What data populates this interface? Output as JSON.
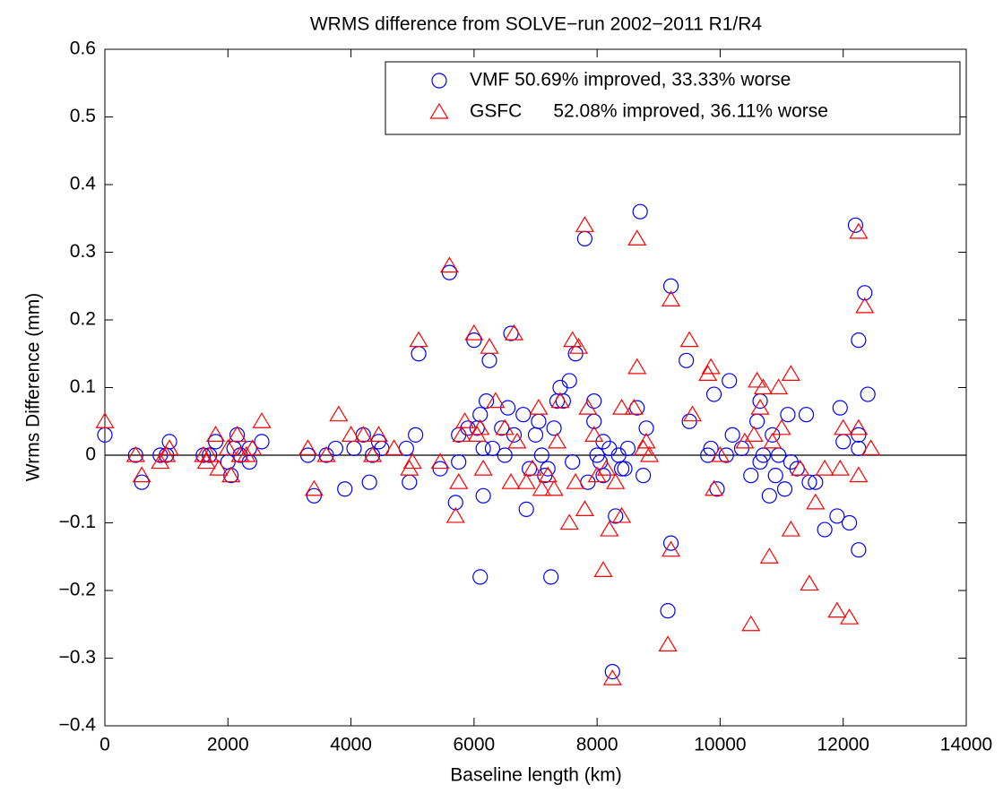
{
  "chart_data": {
    "type": "scatter",
    "title": "WRMS difference from SOLVE−run 2002−2011 R1/R4",
    "xlabel": "Baseline length (km)",
    "ylabel": "Wrms Difference (mm)",
    "xlim": [
      0,
      14000
    ],
    "ylim": [
      -0.4,
      0.6
    ],
    "xticks": [
      0,
      2000,
      4000,
      6000,
      8000,
      10000,
      12000,
      14000
    ],
    "yticks": [
      {
        "value": -0.4,
        "label": "−0.4"
      },
      {
        "value": -0.3,
        "label": "−0.3"
      },
      {
        "value": -0.2,
        "label": "−0.2"
      },
      {
        "value": -0.1,
        "label": "−0.1"
      },
      0,
      0.1,
      0.2,
      0.3,
      0.4,
      0.5,
      0.6
    ],
    "hline": 0,
    "legend": "upper right",
    "series": [
      {
        "name": "VMF 50.69% improved, 33.33% worse",
        "color": "#0000ff",
        "marker": "circle",
        "x": [
          0,
          500,
          600,
          900,
          1000,
          1050,
          1600,
          1700,
          1800,
          2000,
          2050,
          2100,
          2150,
          2200,
          2350,
          2350,
          2550,
          3300,
          3400,
          3600,
          3750,
          3900,
          4050,
          4200,
          4300,
          4350,
          4450,
          4500,
          4900,
          4950,
          5050,
          5100,
          5450,
          5600,
          5700,
          5750,
          5750,
          5900,
          6000,
          6050,
          6100,
          6100,
          6150,
          6150,
          6200,
          6250,
          6300,
          6450,
          6500,
          6550,
          6600,
          6650,
          6800,
          6850,
          6900,
          7000,
          7050,
          7100,
          7150,
          7200,
          7250,
          7300,
          7350,
          7400,
          7450,
          7550,
          7600,
          7650,
          7800,
          7850,
          7950,
          7950,
          8000,
          8050,
          8100,
          8100,
          8200,
          8250,
          8300,
          8350,
          8400,
          8450,
          8500,
          8650,
          8700,
          8750,
          8800,
          9150,
          9200,
          9200,
          9450,
          9500,
          9800,
          9850,
          9900,
          9950,
          10100,
          10150,
          10200,
          10350,
          10500,
          10600,
          10650,
          10650,
          10700,
          10800,
          10850,
          10900,
          10950,
          11050,
          11100,
          11150,
          11250,
          11400,
          11450,
          11550,
          11700,
          11900,
          11950,
          12000,
          12100,
          12200,
          12250,
          12250,
          12250,
          12250,
          12350,
          12400
        ],
        "values": [
          0.03,
          0,
          -0.04,
          0,
          0,
          0.02,
          0,
          0,
          0.02,
          -0.01,
          -0.03,
          0.01,
          0.03,
          0,
          0.01,
          -0.01,
          0.02,
          0,
          -0.06,
          0,
          0.01,
          -0.05,
          0.01,
          0.03,
          -0.04,
          0,
          0.02,
          0.01,
          0.01,
          -0.04,
          0.03,
          0.15,
          -0.02,
          0.27,
          -0.07,
          0.03,
          -0.01,
          0.04,
          0.17,
          0.04,
          -0.18,
          0.06,
          -0.06,
          0.01,
          0.08,
          0.14,
          0.01,
          0.04,
          0,
          0.07,
          0.18,
          0.03,
          0.06,
          -0.08,
          -0.02,
          0.03,
          0.05,
          0,
          -0.03,
          -0.02,
          -0.18,
          0.04,
          0.08,
          0.1,
          0.08,
          0.11,
          -0.01,
          0.15,
          0.32,
          -0.04,
          0.08,
          0.05,
          0,
          -0.01,
          0.02,
          -0.03,
          0.01,
          -0.32,
          -0.09,
          0,
          -0.02,
          -0.02,
          0.01,
          0.07,
          0.36,
          -0.03,
          0.04,
          -0.23,
          0.25,
          -0.13,
          0.14,
          0.05,
          0,
          0.01,
          0.09,
          -0.05,
          0,
          0.11,
          0.03,
          0.01,
          -0.03,
          0.05,
          0.08,
          -0.01,
          0,
          -0.06,
          0.03,
          -0.03,
          0,
          -0.05,
          0.06,
          -0.01,
          -0.02,
          0.06,
          -0.04,
          -0.04,
          -0.11,
          -0.09,
          0.07,
          0.02,
          -0.1,
          0.34,
          0.17,
          0.03,
          0.01,
          -0.14,
          0.24,
          0.09
        ]
      },
      {
        "name": "GSFC      52.08% improved, 36.11% worse",
        "color": "#ff0000",
        "marker": "triangle",
        "x": [
          0,
          500,
          600,
          900,
          1000,
          1050,
          1600,
          1650,
          1700,
          1800,
          1850,
          2000,
          2050,
          2150,
          2200,
          2300,
          2400,
          2550,
          3300,
          3400,
          3600,
          3800,
          4000,
          4200,
          4350,
          4450,
          4700,
          4950,
          5000,
          5100,
          5450,
          5600,
          5700,
          5750,
          5800,
          5850,
          6000,
          6050,
          6100,
          6150,
          6250,
          6350,
          6500,
          6600,
          6650,
          6700,
          6850,
          6950,
          7050,
          7100,
          7200,
          7300,
          7350,
          7400,
          7550,
          7600,
          7650,
          7700,
          7800,
          7800,
          7850,
          7950,
          8000,
          8100,
          8150,
          8200,
          8250,
          8300,
          8400,
          8400,
          8600,
          8650,
          8650,
          8750,
          8800,
          8850,
          9150,
          9200,
          9200,
          9500,
          9550,
          9800,
          9850,
          9900,
          10000,
          10400,
          10500,
          10550,
          10600,
          10650,
          10700,
          10800,
          10850,
          10950,
          11000,
          11150,
          11150,
          11300,
          11450,
          11550,
          11700,
          11950,
          11900,
          12000,
          12100,
          12250,
          12250,
          12250,
          12350,
          12450
        ],
        "values": [
          0.05,
          0,
          -0.03,
          -0.01,
          0,
          0.01,
          0,
          -0.01,
          0,
          0.03,
          -0.02,
          0.01,
          -0.03,
          0.03,
          0,
          0,
          0.01,
          0.05,
          0.01,
          -0.05,
          0,
          0.06,
          0.03,
          0.03,
          0,
          0.03,
          0.01,
          -0.02,
          -0.01,
          0.17,
          -0.01,
          0.28,
          -0.09,
          -0.04,
          0.03,
          0.05,
          0.18,
          0.03,
          0.04,
          -0.02,
          0.16,
          0.08,
          0.04,
          -0.04,
          0.18,
          0.02,
          -0.04,
          -0.02,
          0.07,
          -0.05,
          -0.03,
          -0.05,
          0.02,
          0.08,
          -0.1,
          0.17,
          -0.04,
          0.16,
          0.34,
          -0.08,
          0.07,
          0.03,
          -0.03,
          -0.17,
          -0.02,
          -0.11,
          -0.33,
          -0.04,
          -0.09,
          0.07,
          0.07,
          0.13,
          0.32,
          0.01,
          0.02,
          0,
          -0.28,
          -0.14,
          0.23,
          0.17,
          0.06,
          0.12,
          0.13,
          -0.05,
          0,
          0.02,
          -0.25,
          0.03,
          0.11,
          0.07,
          0.1,
          -0.15,
          0.02,
          0.1,
          0.04,
          0.12,
          -0.11,
          -0.02,
          -0.19,
          -0.07,
          -0.02,
          -0.02,
          -0.23,
          0.04,
          -0.24,
          0.33,
          0.04,
          -0.03,
          0.22,
          0.01
        ]
      }
    ]
  }
}
